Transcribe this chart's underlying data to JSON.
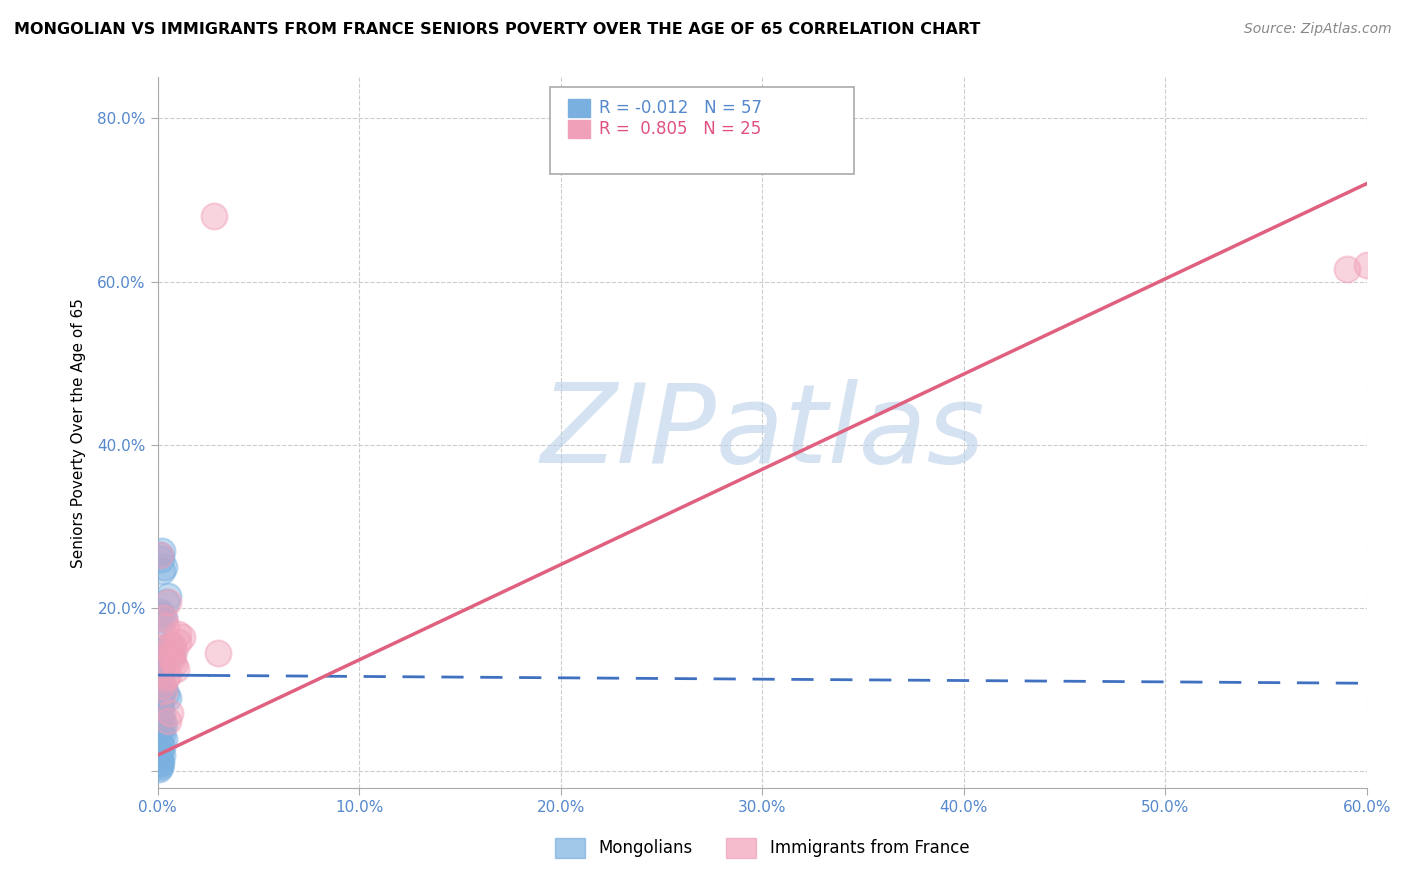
{
  "title": "MONGOLIAN VS IMMIGRANTS FROM FRANCE SENIORS POVERTY OVER THE AGE OF 65 CORRELATION CHART",
  "source": "Source: ZipAtlas.com",
  "ylabel": "Seniors Poverty Over the Age of 65",
  "xlim": [
    0.0,
    0.6
  ],
  "ylim": [
    -0.02,
    0.85
  ],
  "xticks": [
    0.0,
    0.1,
    0.2,
    0.3,
    0.4,
    0.5,
    0.6
  ],
  "xtick_labels": [
    "0.0%",
    "10.0%",
    "20.0%",
    "30.0%",
    "40.0%",
    "50.0%",
    "60.0%"
  ],
  "yticks": [
    0.0,
    0.2,
    0.4,
    0.6,
    0.8
  ],
  "ytick_labels": [
    "",
    "20.0%",
    "40.0%",
    "60.0%",
    "80.0%"
  ],
  "grid_color": "#cccccc",
  "watermark": "ZIPatlas",
  "watermark_color": "#b8cfe8",
  "legend_R_mongolian": "-0.012",
  "legend_N_mongolian": "57",
  "legend_R_france": "0.805",
  "legend_N_france": "25",
  "mongolian_color": "#7ab0e0",
  "france_color": "#f0a0b8",
  "mongolian_line_color": "#4070c0",
  "france_line_color": "#e06080",
  "tick_color": "#5588cc",
  "background_color": "#ffffff",
  "mongolians_scatter": {
    "x": [
      0.001,
      0.002,
      0.003,
      0.0015,
      0.002,
      0.001,
      0.0008,
      0.0012,
      0.001,
      0.0015,
      0.002,
      0.003,
      0.004,
      0.005,
      0.003,
      0.002,
      0.001,
      0.001,
      0.0005,
      0.001,
      0.002,
      0.001,
      0.0015,
      0.001,
      0.0008,
      0.003,
      0.004,
      0.005,
      0.006,
      0.007,
      0.004,
      0.005,
      0.002,
      0.003,
      0.002,
      0.001,
      0.002,
      0.003,
      0.001,
      0.002,
      0.001,
      0.0008,
      0.001,
      0.002,
      0.001,
      0.0015,
      0.001,
      0.0012,
      0.001,
      0.0008,
      0.001,
      0.002,
      0.001,
      0.0015,
      0.001,
      0.002,
      0.001
    ],
    "y": [
      0.265,
      0.27,
      0.25,
      0.26,
      0.245,
      0.105,
      0.115,
      0.1,
      0.108,
      0.112,
      0.098,
      0.102,
      0.095,
      0.09,
      0.188,
      0.192,
      0.185,
      0.195,
      0.128,
      0.132,
      0.138,
      0.125,
      0.118,
      0.122,
      0.115,
      0.145,
      0.152,
      0.148,
      0.155,
      0.142,
      0.208,
      0.215,
      0.062,
      0.058,
      0.072,
      0.065,
      0.045,
      0.04,
      0.035,
      0.03,
      0.08,
      0.075,
      0.025,
      0.02,
      0.015,
      0.01,
      0.012,
      0.005,
      0.008,
      0.003,
      0.13,
      0.135,
      0.085,
      0.088,
      0.092,
      0.055,
      0.05
    ]
  },
  "france_scatter": {
    "x": [
      0.001,
      0.002,
      0.003,
      0.003,
      0.004,
      0.005,
      0.005,
      0.006,
      0.007,
      0.008,
      0.01,
      0.012,
      0.004,
      0.006,
      0.008,
      0.01,
      0.005,
      0.007,
      0.009,
      0.003,
      0.004,
      0.028,
      0.6,
      0.59,
      0.03
    ],
    "y": [
      0.265,
      0.105,
      0.188,
      0.145,
      0.152,
      0.208,
      0.062,
      0.072,
      0.155,
      0.148,
      0.158,
      0.165,
      0.178,
      0.142,
      0.132,
      0.168,
      0.118,
      0.138,
      0.125,
      0.098,
      0.115,
      0.68,
      0.62,
      0.615,
      0.145
    ]
  },
  "france_line": {
    "x0": 0.0,
    "y0": 0.02,
    "x1": 0.6,
    "y1": 0.72
  },
  "mongolian_line": {
    "x0": 0.0,
    "y0": 0.118,
    "x1": 0.6,
    "y1": 0.108,
    "solid_end": 0.025
  }
}
